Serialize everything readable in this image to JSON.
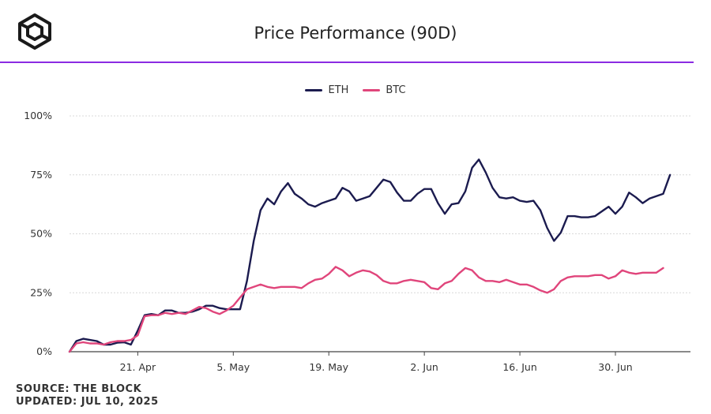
{
  "header": {
    "title": "Price Performance (90D)",
    "accent_color": "#8b2be2",
    "logo_icon": "cube-logo-icon"
  },
  "footer": {
    "source": "SOURCE: THE BLOCK",
    "updated": "UPDATED: JUL 10, 2025"
  },
  "chart_data": {
    "type": "line",
    "title": "Price Performance (90D)",
    "xlabel": "",
    "ylabel": "",
    "ylim": [
      0,
      100
    ],
    "y_ticks": [
      "0%",
      "25%",
      "50%",
      "75%",
      "100%"
    ],
    "x_tick_labels": [
      "21. Apr",
      "5. May",
      "19. May",
      "2. Jun",
      "16. Jun",
      "30. Jun"
    ],
    "x_tick_days": [
      10,
      24,
      38,
      52,
      66,
      80
    ],
    "x_range_days": [
      0,
      91
    ],
    "grid": true,
    "legend_position": "top-center",
    "series": [
      {
        "name": "ETH",
        "color": "#1b1b4f",
        "values": [
          0,
          4.5,
          5.5,
          5,
          4.5,
          3,
          3,
          3.8,
          4,
          3,
          9,
          15.5,
          16,
          15.5,
          17.5,
          17.5,
          16.5,
          16.5,
          17,
          18,
          19.5,
          19.5,
          18.5,
          18,
          18,
          18,
          30,
          47,
          60,
          65,
          62.5,
          68,
          71.5,
          67,
          65,
          62.5,
          61.5,
          63,
          64,
          65,
          69.5,
          68,
          64,
          65,
          66,
          69.5,
          73,
          72,
          67.5,
          64,
          64,
          67,
          69,
          69,
          63,
          58.5,
          62.5,
          63,
          68,
          78,
          81.5,
          76,
          69.5,
          65.5,
          65,
          65.5,
          64,
          63.5,
          64,
          60,
          52.5,
          47,
          50.5,
          57.5,
          57.5,
          57,
          57,
          57.5,
          59.5,
          61.5,
          58.5,
          61.5,
          67.5,
          65.5,
          63,
          65,
          66,
          67,
          75
        ]
      },
      {
        "name": "BTC",
        "color": "#e0457b",
        "values": [
          0,
          3.5,
          4,
          3.5,
          3.5,
          3,
          4,
          4.5,
          4.5,
          5,
          7,
          15,
          15.5,
          15.5,
          16.5,
          16,
          16.5,
          16,
          17.5,
          19,
          18.5,
          17,
          16,
          17.5,
          19.5,
          23,
          26.5,
          27.5,
          28.5,
          27.5,
          27,
          27.5,
          27.5,
          27.5,
          27,
          29,
          30.5,
          31,
          33,
          36,
          34.5,
          32,
          33.5,
          34.5,
          34,
          32.5,
          30,
          29,
          29,
          30,
          30.5,
          30,
          29.5,
          27,
          26.5,
          29,
          30,
          33,
          35.5,
          34.5,
          31.5,
          30,
          30,
          29.5,
          30.5,
          29.5,
          28.5,
          28.5,
          27.5,
          26,
          25,
          26.5,
          30,
          31.5,
          32,
          32,
          32,
          32.5,
          32.5,
          31,
          32,
          34.5,
          33.5,
          33,
          33.5,
          33.5,
          33.5,
          35.5
        ]
      }
    ]
  }
}
